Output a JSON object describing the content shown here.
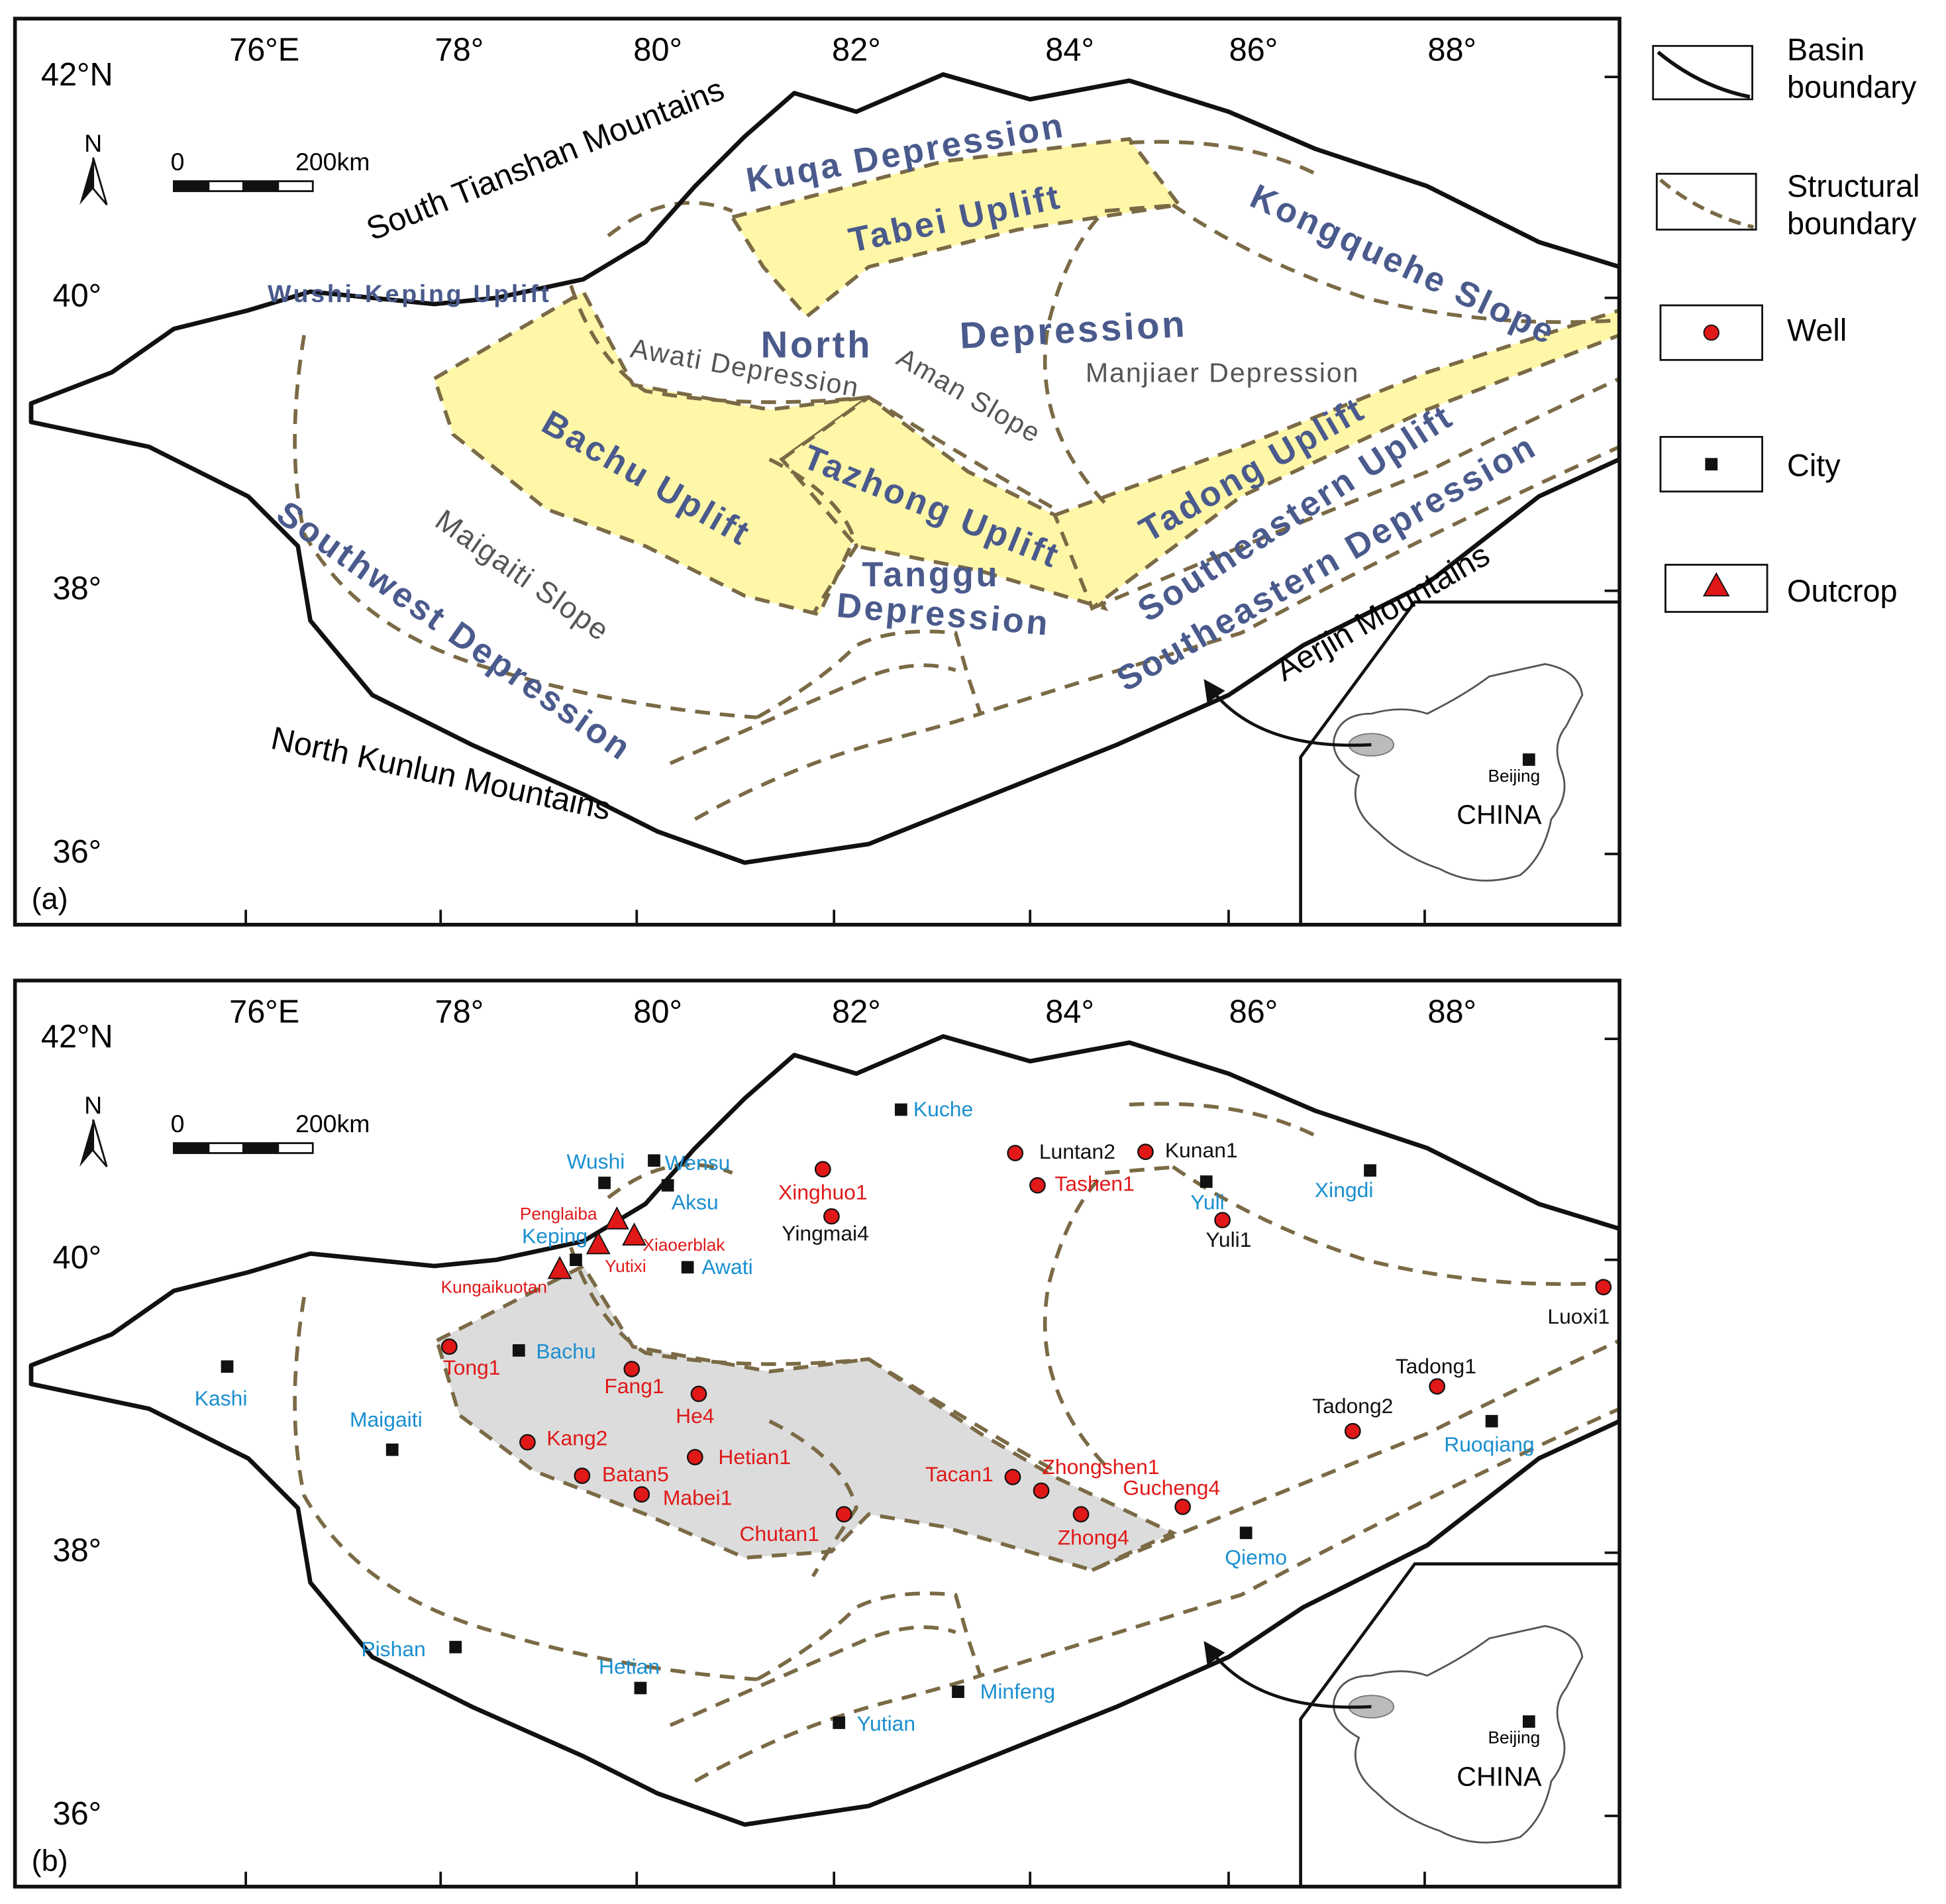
{
  "panels": [
    {
      "label": "(a)",
      "lon_labels": [
        "76°E",
        "78°",
        "80°",
        "82°",
        "84°",
        "86°",
        "88°"
      ],
      "lat_labels": [
        "42°N",
        "40°",
        "38°",
        "36°"
      ],
      "north": "N",
      "scale": [
        "0",
        "200km"
      ],
      "mountains": [
        "South Tianshan Mountains",
        "North Kunlun Mountains",
        "Aerjin Mountains"
      ],
      "units": [
        "Kuqa Depression",
        "Tabei Uplift",
        "Kongquehe Slope",
        "Wushi-Keping Uplift",
        "North",
        "Depression",
        "Awati Depression",
        "Aman Slope",
        "Manjiaer Depression",
        "Bachu Uplift",
        "Tazhong Uplift",
        "Tadong Uplift",
        "Southeastern Uplift",
        "Southeastern Depression",
        "Tanggu",
        "Depression",
        "Maigaiti Slope",
        "Southwest Depression"
      ],
      "inset": {
        "city": "Beijing",
        "country": "CHINA"
      }
    },
    {
      "label": "(b)",
      "lon_labels": [
        "76°E",
        "78°",
        "80°",
        "82°",
        "84°",
        "86°",
        "88°"
      ],
      "lat_labels": [
        "42°N",
        "40°",
        "38°",
        "36°"
      ],
      "north": "N",
      "scale": [
        "0",
        "200km"
      ],
      "wells": [
        "Xinghuo1",
        "Yingmai4",
        "Luntan2",
        "Tashen1",
        "Kunan1",
        "Yuli1",
        "Luoxi1",
        "Tadong1",
        "Tadong2",
        "Tong1",
        "Fang1",
        "He4",
        "Kang2",
        "Hetian1",
        "Batan5",
        "Mabei1",
        "Chutan1",
        "Tacan1",
        "Zhongshen1",
        "Zhong4",
        "Gucheng4"
      ],
      "cities": [
        "Kuche",
        "Wushi",
        "Wensu",
        "Aksu",
        "Keping",
        "Awati",
        "Yuli",
        "Xingdi",
        "Kashi",
        "Bachu",
        "Maigaiti",
        "Ruoqiang",
        "Qiemo",
        "Pishan",
        "Hetian",
        "Minfeng",
        "Yutian"
      ],
      "outcrops": [
        "Penglaiba",
        "Xiaoerblak",
        "Yutixi",
        "Kungaikuotan"
      ],
      "inset": {
        "city": "Beijing",
        "country": "CHINA"
      }
    }
  ],
  "legend": [
    {
      "lines": [
        "Basin",
        "boundary"
      ]
    },
    {
      "lines": [
        "Structural",
        "boundary"
      ]
    },
    {
      "lines": [
        "Well"
      ]
    },
    {
      "lines": [
        "City"
      ]
    },
    {
      "lines": [
        "Outcrop"
      ]
    }
  ]
}
